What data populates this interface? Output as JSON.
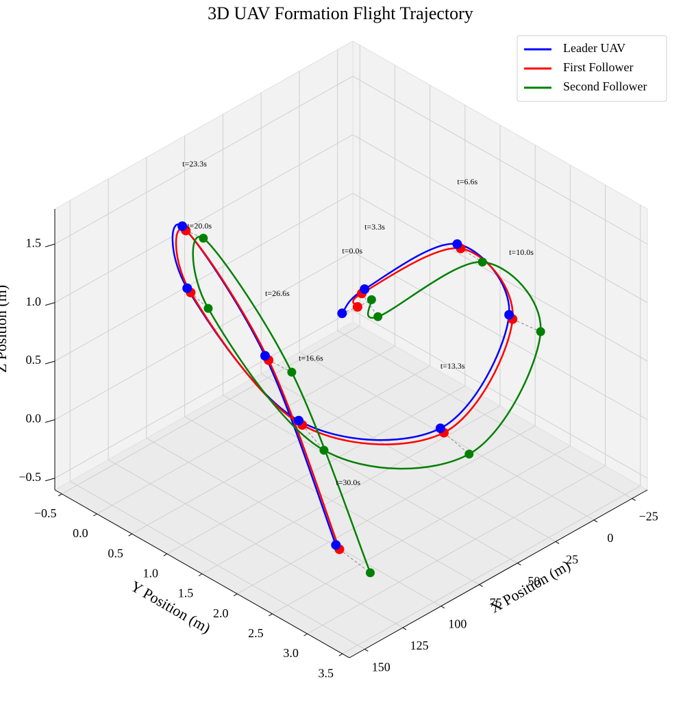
{
  "chart_data": {
    "type": "line3d",
    "title": "3D UAV Formation Flight Trajectory",
    "xlabel": "X Position (m)",
    "ylabel": "Y Position (m)",
    "zlabel": "Z Position (m)",
    "xlim": [
      -35,
      160
    ],
    "ylim": [
      -0.6,
      3.6
    ],
    "zlim": [
      -0.6,
      1.8
    ],
    "xticks": [
      {
        "value": -25,
        "label": "−25"
      },
      0,
      25,
      50,
      75,
      100,
      125,
      150
    ],
    "yticks": [
      {
        "value": -0.5,
        "label": "−0.5"
      },
      {
        "value": 0,
        "label": "0.0"
      },
      0.5,
      {
        "value": 1,
        "label": "1.0"
      },
      1.5,
      {
        "value": 2,
        "label": "2.0"
      },
      2.5,
      {
        "value": 3,
        "label": "3.0"
      },
      3.5
    ],
    "zticks": [
      {
        "value": -0.5,
        "label": "−0.5"
      },
      {
        "value": 0,
        "label": "0.0"
      },
      0.5,
      {
        "value": 1,
        "label": "1.0"
      },
      1.5
    ],
    "grid": true,
    "legend": "upper right",
    "series": [
      {
        "name": "Leader UAV",
        "color": "#0000ff",
        "x": [
          0,
          16.5,
          33,
          50,
          66.5,
          83,
          100,
          116.5,
          133,
          150
        ],
        "y": [
          0.01,
          0.69,
          2.37,
          3.48,
          2.86,
          1.2,
          -0.02,
          0.27,
          1.81,
          3.19
        ],
        "z": [
          -0.06,
          0.5,
          1.58,
          1.48,
          0.42,
          0.04,
          0.88,
          1.63,
          1.17,
          0.15
        ]
      },
      {
        "name": "First Follower",
        "color": "#ff0000",
        "x": [
          0,
          16.5,
          33,
          50,
          66.5,
          83,
          100,
          116.5,
          133,
          150
        ],
        "y": [
          0.23,
          0.65,
          2.42,
          3.53,
          2.91,
          1.25,
          0.03,
          0.32,
          1.86,
          3.24
        ],
        "z": [
          0.07,
          0.45,
          1.56,
          1.46,
          0.4,
          0.02,
          0.86,
          1.61,
          1.15,
          0.13
        ]
      },
      {
        "name": "Second Follower",
        "color": "#008000",
        "x": [
          0,
          16.5,
          33,
          50,
          66.5,
          83,
          100,
          116.5,
          133,
          150
        ],
        "y": [
          0.43,
          0.88,
          2.73,
          3.93,
          3.27,
          1.56,
          0.28,
          0.57,
          2.19,
          3.68
        ],
        "z": [
          0.2,
          0.33,
          1.55,
          1.49,
          0.34,
          -0.09,
          0.81,
          1.63,
          1.16,
          0.08
        ]
      }
    ],
    "annotations": [
      "t=0.0s",
      "t=3.3s",
      "t=6.6s",
      "t=10.0s",
      "t=13.3s",
      "t=16.6s",
      "t=20.0s",
      "t=23.3s",
      "t=26.6s",
      "t=30.0s"
    ]
  }
}
